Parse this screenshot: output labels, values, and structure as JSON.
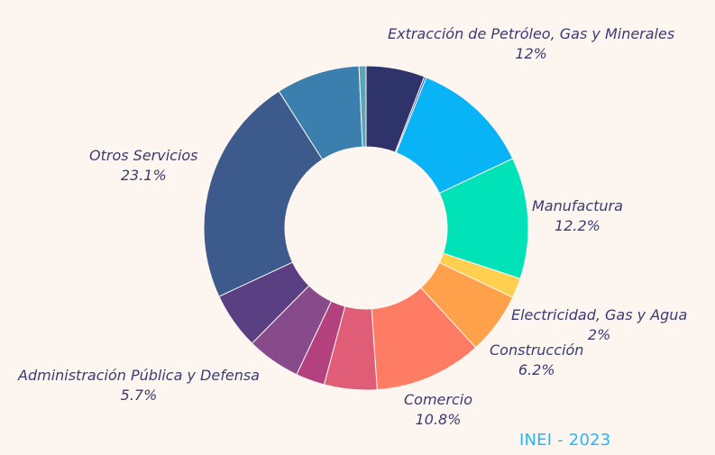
{
  "chart_data": {
    "type": "pie",
    "style": "donut",
    "slices": [
      {
        "label": "",
        "value": 5.9,
        "color": "#2e3369"
      },
      {
        "label": "",
        "value": 0.2,
        "color": "#3856c2"
      },
      {
        "label": "Extracción de Petróleo, Gas y Minerales",
        "value": 12,
        "color": "#08b4f5"
      },
      {
        "label": "Manufactura",
        "value": 12.2,
        "color": "#00e3b8"
      },
      {
        "label": "Electricidad, Gas y Agua",
        "value": 2,
        "color": "#ffd04f"
      },
      {
        "label": "Construcción",
        "value": 6.2,
        "color": "#ffa04a"
      },
      {
        "label": "Comercio",
        "value": 10.8,
        "color": "#ff7c64"
      },
      {
        "label": "",
        "value": 5.3,
        "color": "#e05d77"
      },
      {
        "label": "",
        "value": 2.9,
        "color": "#b2417d"
      },
      {
        "label": "",
        "value": 5.4,
        "color": "#874a8a"
      },
      {
        "label": "Administración Pública y Defensa",
        "value": 5.7,
        "color": "#5a3f82"
      },
      {
        "label": "Otros Servicios",
        "value": 23.1,
        "color": "#3d5a8c"
      },
      {
        "label": "",
        "value": 8.4,
        "color": "#3a7fad"
      },
      {
        "label": "",
        "value": 0.7,
        "color": "#5aa6b8"
      }
    ],
    "labels": [
      {
        "name": "Extracción de Petróleo, Gas y Minerales",
        "percent": "12%"
      },
      {
        "name": "Manufactura",
        "percent": "12.2%"
      },
      {
        "name": "Electricidad, Gas y Agua",
        "percent": "2%"
      },
      {
        "name": "Construcción",
        "percent": "6.2%"
      },
      {
        "name": "Comercio",
        "percent": "10.8%"
      },
      {
        "name": "Administración Pública y Defensa",
        "percent": "5.7%"
      },
      {
        "name": "Otros Servicios",
        "percent": "23.1%"
      }
    ],
    "source": "INEI - 2023"
  }
}
